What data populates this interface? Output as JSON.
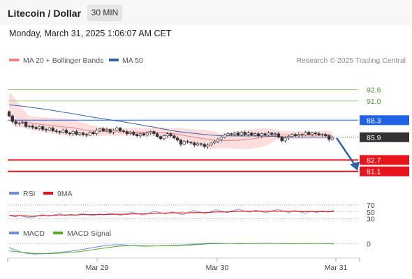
{
  "header": {
    "title": "Litecoin / Dollar",
    "timeframe": "30 MIN",
    "datetime": "Monday, March 31, 2025 1:06:07 AM CET"
  },
  "credit": "Research © 2025 Trading Central",
  "colors": {
    "up_candle": "#ffffff",
    "down_candle": "#333333",
    "bollinger_fill": "#fbd3d3",
    "ma20": "#f08080",
    "ma50": "#3a5fa8",
    "resistance": "#1e63e8",
    "support": "#e8141b",
    "target_line": "#9acd7a",
    "current_price": "#333333",
    "rsi": "#6b8fdc",
    "rsi_ma": "#e8141b",
    "macd": "#6b8fdc",
    "macd_signal": "#5aaa2a",
    "arrow": "#2e62a6"
  },
  "chart_data": [
    {
      "type": "candlestick",
      "legend": [
        "MA 20 + Bollinger Bands",
        "MA 50"
      ],
      "legend_placement": "top-left",
      "x_ticks": [
        "Mar 29",
        "Mar 30",
        "Mar 31"
      ],
      "y_range": [
        79.5,
        95
      ],
      "levels": [
        {
          "value": 92.6,
          "label": "92.6",
          "kind": "target"
        },
        {
          "value": 91.0,
          "label": "91.0",
          "kind": "target"
        },
        {
          "value": 88.3,
          "label": "88.3",
          "kind": "resistance"
        },
        {
          "value": 85.9,
          "label": "85.9",
          "kind": "current"
        },
        {
          "value": 82.7,
          "label": "82.7",
          "kind": "support"
        },
        {
          "value": 81.1,
          "label": "81.1",
          "kind": "support"
        }
      ],
      "arrow": {
        "from": 85.8,
        "to": 81.3,
        "direction": "down"
      },
      "close": [
        88.9,
        88.1,
        87.8,
        87.9,
        88.0,
        87.4,
        87.5,
        87.3,
        87.1,
        87.4,
        87.0,
        86.9,
        87.2,
        86.8,
        86.7,
        86.6,
        86.9,
        86.5,
        86.4,
        86.7,
        86.3,
        86.5,
        86.3,
        86.2,
        86.6,
        86.4,
        86.9,
        87.1,
        86.8,
        87.0,
        86.6,
        86.9,
        87.2,
        86.8,
        86.7,
        86.4,
        86.6,
        86.3,
        86.1,
        86.4,
        86.2,
        86.5,
        86.7,
        86.4,
        86.0,
        85.7,
        86.1,
        86.4,
        86.1,
        85.8,
        85.5,
        84.9,
        85.3,
        85.2,
        85.1,
        84.8,
        85.0,
        84.9,
        84.6,
        84.8,
        85.1,
        85.3,
        85.6,
        85.9,
        86.2,
        86.4,
        86.3,
        86.5,
        86.2,
        86.6,
        86.3,
        86.5,
        86.2,
        86.4,
        86.1,
        86.4,
        86.2,
        86.5,
        86.3,
        86.4,
        85.9,
        85.4,
        85.8,
        86.0,
        86.3,
        86.1,
        86.3,
        86.2,
        86.6,
        86.3,
        86.5,
        86.4,
        86.2,
        86.3,
        86.1,
        85.6,
        85.9
      ]
    },
    {
      "type": "line",
      "legend": [
        "RSI",
        "9MA"
      ],
      "levels": [
        70,
        50,
        30
      ],
      "y_range": [
        15,
        80
      ],
      "series": [
        {
          "name": "RSI",
          "values": [
            40,
            36,
            39,
            35,
            33,
            38,
            42,
            37,
            41,
            45,
            39,
            43,
            40,
            46,
            42,
            38,
            44,
            41,
            47,
            43,
            40,
            45,
            49,
            44,
            41,
            46,
            52,
            48,
            44,
            50,
            46,
            42,
            48,
            54,
            50,
            45,
            51,
            56,
            52,
            48,
            54,
            58,
            53,
            49,
            55,
            51,
            47,
            53,
            57,
            52,
            48,
            54,
            50,
            46,
            52,
            48,
            53,
            49,
            55
          ]
        },
        {
          "name": "9MA",
          "values": [
            40,
            39,
            39,
            38,
            37,
            38,
            39,
            39,
            40,
            41,
            41,
            41,
            41,
            42,
            42,
            42,
            42,
            42,
            43,
            43,
            43,
            43,
            44,
            44,
            44,
            45,
            46,
            46,
            46,
            47,
            47,
            47,
            47,
            48,
            48,
            48,
            49,
            50,
            50,
            50,
            51,
            52,
            52,
            52,
            52,
            52,
            52,
            52,
            52,
            52,
            52,
            52,
            51,
            51,
            51,
            51,
            51,
            51,
            51
          ]
        }
      ]
    },
    {
      "type": "line",
      "legend": [
        "MACD",
        "MACD Signal"
      ],
      "levels": [
        0
      ],
      "y_range": [
        -2,
        1
      ],
      "series": [
        {
          "name": "MACD",
          "values": [
            -0.6,
            -1.1,
            -1.5,
            -1.6,
            -1.55,
            -1.45,
            -1.3,
            -1.2,
            -1.0,
            -0.8,
            -0.55,
            -0.35,
            -0.2,
            -0.15,
            -0.25,
            -0.35,
            -0.4,
            -0.35,
            -0.3,
            -0.25,
            -0.2,
            -0.15,
            -0.05,
            0.05,
            0.1,
            0.08,
            0.02,
            -0.05,
            0.0,
            0.05,
            0.08,
            0.05,
            0.0,
            -0.05,
            -0.02,
            0.02,
            0.05,
            0.0,
            -0.05
          ]
        },
        {
          "name": "MACD Signal",
          "values": [
            -1.1,
            -1.25,
            -1.4,
            -1.5,
            -1.55,
            -1.52,
            -1.45,
            -1.38,
            -1.25,
            -1.1,
            -0.9,
            -0.7,
            -0.52,
            -0.38,
            -0.3,
            -0.3,
            -0.33,
            -0.34,
            -0.33,
            -0.3,
            -0.27,
            -0.22,
            -0.15,
            -0.06,
            0.0,
            0.04,
            0.04,
            0.02,
            0.0,
            0.02,
            0.04,
            0.04,
            0.03,
            0.0,
            -0.01,
            0.0,
            0.02,
            0.02,
            0.0
          ]
        }
      ]
    }
  ]
}
